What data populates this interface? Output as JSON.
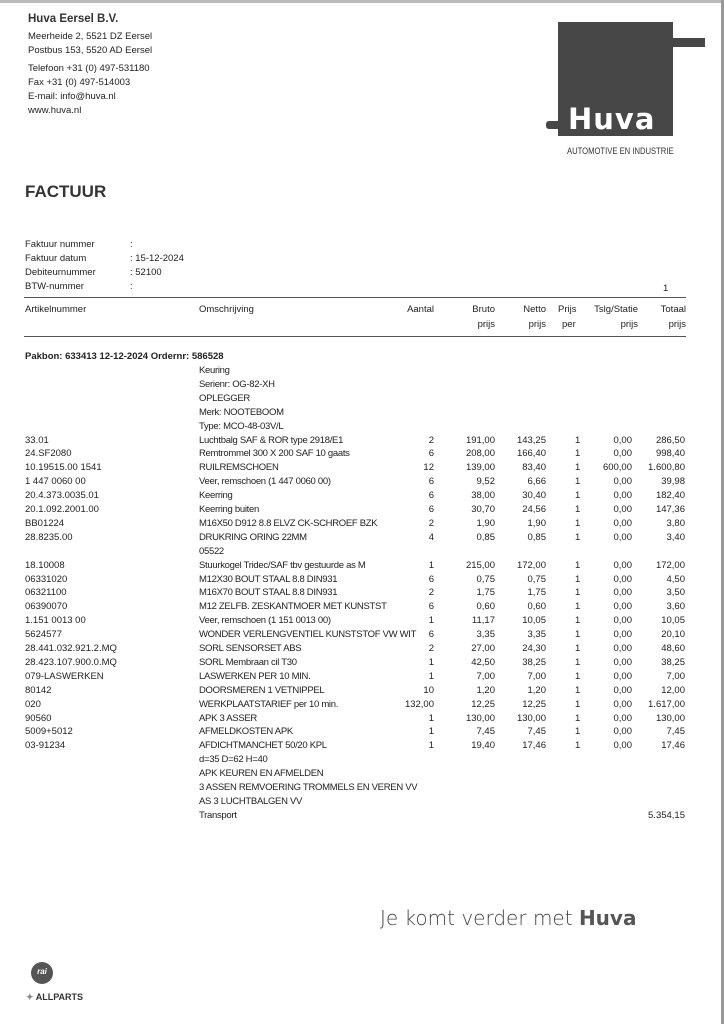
{
  "company": {
    "name": "Huva Eersel B.V.",
    "address1": "Meerheide 2, 5521 DZ  Eersel",
    "address2": "Postbus 153, 5520 AD  Eersel",
    "phone": "Telefoon +31 (0) 497-531180",
    "fax": "Fax +31 (0) 497-514003",
    "email": "E-mail: info@huva.nl",
    "web": "www.huva.nl",
    "logo_text": "Huva",
    "tagline": "AUTOMOTIVE EN INDUSTRIE"
  },
  "document_title": "FACTUUR",
  "info": [
    {
      "label": "Faktuur nummer",
      "value": ":"
    },
    {
      "label": "Faktuur datum",
      "value": ": 15-12-2024"
    },
    {
      "label": "Debiteurnummer",
      "value": ": 52100"
    },
    {
      "label": "BTW-nummer",
      "value": ":"
    }
  ],
  "page_number": "1",
  "columns": {
    "artikel": "Artikelnummer",
    "omschrijving": "Omschrijving",
    "aantal": "Aantal",
    "bruto": [
      "Bruto",
      "prijs"
    ],
    "netto": [
      "Netto",
      "prijs"
    ],
    "per": [
      "Prijs",
      "per"
    ],
    "tslg": [
      "Tslg/Statie",
      "prijs"
    ],
    "totaal": [
      "Totaal",
      "prijs"
    ]
  },
  "pakbon": "Pakbon: 633413 12-12-2024   Ordernr: 586528",
  "lines": [
    {
      "desc": "Keuring"
    },
    {
      "desc": "Serienr: OG-82-XH"
    },
    {
      "desc": "OPLEGGER"
    },
    {
      "desc": "Merk: NOOTEBOOM"
    },
    {
      "desc": "Type: MCO-48-03V/L"
    },
    {
      "art": "33.01",
      "desc": "Luchtbalg SAF & ROR type 2918/E1",
      "qty": "2",
      "bruto": "191,00",
      "netto": "143,25",
      "per": "1",
      "tslg": "0,00",
      "totaal": "286,50"
    },
    {
      "art": "24.SF2080",
      "desc": "Remtrommel 300 X 200 SAF 10 gaats",
      "qty": "6",
      "bruto": "208,00",
      "netto": "166,40",
      "per": "1",
      "tslg": "0,00",
      "totaal": "998,40"
    },
    {
      "art": "10.19515.00 1541",
      "desc": "RUILREMSCHOEN",
      "qty": "12",
      "bruto": "139,00",
      "netto": "83,40",
      "per": "1",
      "tslg": "600,00",
      "totaal": "1.600,80"
    },
    {
      "art": "1 447 0060 00",
      "desc": "Veer, remschoen (1 447 0060 00)",
      "qty": "6",
      "bruto": "9,52",
      "netto": "6,66",
      "per": "1",
      "tslg": "0,00",
      "totaal": "39,98"
    },
    {
      "art": "20.4.373.0035.01",
      "desc": "Keerring",
      "qty": "6",
      "bruto": "38,00",
      "netto": "30,40",
      "per": "1",
      "tslg": "0,00",
      "totaal": "182,40"
    },
    {
      "art": "20.1.092.2001.00",
      "desc": "Keerring buiten",
      "qty": "6",
      "bruto": "30,70",
      "netto": "24,56",
      "per": "1",
      "tslg": "0,00",
      "totaal": "147,36"
    },
    {
      "art": "BB01224",
      "desc": "M16X50 D912 8.8 ELVZ CK-SCHROEF BZK",
      "qty": "2",
      "bruto": "1,90",
      "netto": "1,90",
      "per": "1",
      "tslg": "0,00",
      "totaal": "3,80"
    },
    {
      "art": "28.8235.00",
      "desc": "DRUKRING  ORING 22MM",
      "qty": "4",
      "bruto": "0,85",
      "netto": "0,85",
      "per": "1",
      "tslg": "0,00",
      "totaal": "3,40"
    },
    {
      "desc": "05522"
    },
    {
      "art": "18.10008",
      "desc": "Stuurkogel Tridec/SAF tbv gestuurde as M",
      "qty": "1",
      "bruto": "215,00",
      "netto": "172,00",
      "per": "1",
      "tslg": "0,00",
      "totaal": "172,00"
    },
    {
      "art": "06331020",
      "desc": "M12X30 BOUT  STAAL 8.8 DIN931",
      "qty": "6",
      "bruto": "0,75",
      "netto": "0,75",
      "per": "1",
      "tslg": "0,00",
      "totaal": "4,50"
    },
    {
      "art": "06321100",
      "desc": "M16X70 BOUT  STAAL 8.8 DIN931",
      "qty": "2",
      "bruto": "1,75",
      "netto": "1,75",
      "per": "1",
      "tslg": "0,00",
      "totaal": "3,50"
    },
    {
      "art": "06390070",
      "desc": "M12 ZELFB. ZESKANTMOER MET KUNSTST",
      "qty": "6",
      "bruto": "0,60",
      "netto": "0,60",
      "per": "1",
      "tslg": "0,00",
      "totaal": "3,60"
    },
    {
      "art": "1.151 0013 00",
      "desc": "Veer, remschoen (1 151 0013 00)",
      "qty": "1",
      "bruto": "11,17",
      "netto": "10,05",
      "per": "1",
      "tslg": "0,00",
      "totaal": "10,05"
    },
    {
      "art": "5624577",
      "desc": "WONDER VERLENGVENTIEL KUNSTSTOF VW WIT",
      "qty": "6",
      "bruto": "3,35",
      "netto": "3,35",
      "per": "1",
      "tslg": "0,00",
      "totaal": "20,10"
    },
    {
      "art": "28.441.032.921.2.MQ",
      "desc": "SORL SENSORSET ABS",
      "qty": "2",
      "bruto": "27,00",
      "netto": "24,30",
      "per": "1",
      "tslg": "0,00",
      "totaal": "48,60"
    },
    {
      "art": "28.423.107.900.0.MQ",
      "desc": "SORL Membraan cil T30",
      "qty": "1",
      "bruto": "42,50",
      "netto": "38,25",
      "per": "1",
      "tslg": "0,00",
      "totaal": "38,25"
    },
    {
      "art": "079-LASWERKEN",
      "desc": "LASWERKEN PER  10 MIN.",
      "qty": "1",
      "bruto": "7,00",
      "netto": "7,00",
      "per": "1",
      "tslg": "0,00",
      "totaal": "7,00"
    },
    {
      "art": "80142",
      "desc": "DOORSMEREN 1 VETNIPPEL",
      "qty": "10",
      "bruto": "1,20",
      "netto": "1,20",
      "per": "1",
      "tslg": "0,00",
      "totaal": "12,00"
    },
    {
      "art": "020",
      "desc": "WERKPLAATSTARIEF per 10 min.",
      "qty": "132,00",
      "bruto": "12,25",
      "netto": "12,25",
      "per": "1",
      "tslg": "0,00",
      "totaal": "1.617,00"
    },
    {
      "art": "90560",
      "desc": "APK 3 ASSER",
      "qty": "1",
      "bruto": "130,00",
      "netto": "130,00",
      "per": "1",
      "tslg": "0,00",
      "totaal": "130,00"
    },
    {
      "art": "5009+5012",
      "desc": "AFMELDKOSTEN APK",
      "qty": "1",
      "bruto": "7,45",
      "netto": "7,45",
      "per": "1",
      "tslg": "0,00",
      "totaal": "7,45"
    },
    {
      "art": "03-91234",
      "desc": "AFDICHTMANCHET 50/20 KPL",
      "qty": "1",
      "bruto": "19,40",
      "netto": "17,46",
      "per": "1",
      "tslg": "0,00",
      "totaal": "17,46"
    },
    {
      "desc": "d=35 D=62 H=40"
    },
    {
      "desc": "APK KEUREN EN AFMELDEN"
    },
    {
      "desc": "3 ASSEN REMVOERING TROMMELS EN VEREN VV"
    },
    {
      "desc": "AS 3 LUCHTBALGEN VV"
    },
    {
      "desc": "Transport",
      "totaal": "5.354,15"
    }
  ],
  "footer": {
    "slogan": "Je komt verder met",
    "slogan_brand": "Huva",
    "rai_logo": "rai",
    "allparts": "ALLPARTS"
  },
  "colors": {
    "logo": "#474747",
    "text": "#222222"
  }
}
